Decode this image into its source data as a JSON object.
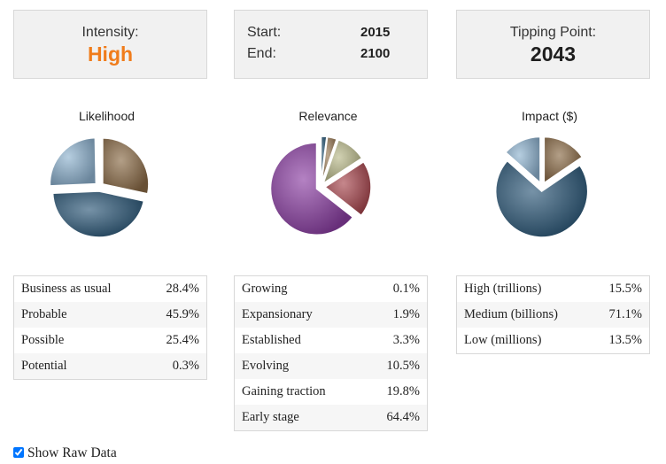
{
  "intensity": {
    "label": "Intensity:",
    "value": "High"
  },
  "dates": {
    "start_label": "Start:",
    "start_value": "2015",
    "end_label": "End:",
    "end_value": "2100"
  },
  "tipping": {
    "label": "Tipping Point:",
    "value": "2043"
  },
  "charts": {
    "likelihood": {
      "title": "Likelihood"
    },
    "relevance": {
      "title": "Relevance"
    },
    "impact": {
      "title": "Impact ($)"
    }
  },
  "chart_data": [
    {
      "type": "pie",
      "title": "Likelihood",
      "categories": [
        "Business as usual",
        "Probable",
        "Possible",
        "Potential"
      ],
      "values": [
        28.4,
        45.9,
        25.4,
        0.3
      ],
      "colors": [
        "#8a6b47",
        "#2c5878",
        "#8fb3d0",
        "#5f7e9a"
      ]
    },
    {
      "type": "pie",
      "title": "Relevance",
      "categories": [
        "Growing",
        "Expansionary",
        "Established",
        "Evolving",
        "Gaining traction",
        "Early stage"
      ],
      "values": [
        0.1,
        1.9,
        3.3,
        10.5,
        19.8,
        64.4
      ],
      "colors": [
        "#4a5d80",
        "#1f4e6e",
        "#9a7a56",
        "#b9b98a",
        "#a8464e",
        "#8b3fa3"
      ]
    },
    {
      "type": "pie",
      "title": "Impact ($)",
      "categories": [
        "High (trillions)",
        "Medium (billions)",
        "Low (millions)"
      ],
      "values": [
        15.5,
        71.1,
        13.5
      ],
      "colors": [
        "#8a6b47",
        "#2c5878",
        "#8fb3d0"
      ]
    }
  ],
  "tables": {
    "likelihood": [
      {
        "name": "Business as usual",
        "pct": "28.4%"
      },
      {
        "name": "Probable",
        "pct": "45.9%"
      },
      {
        "name": "Possible",
        "pct": "25.4%"
      },
      {
        "name": "Potential",
        "pct": "0.3%"
      }
    ],
    "relevance": [
      {
        "name": "Growing",
        "pct": "0.1%"
      },
      {
        "name": "Expansionary",
        "pct": "1.9%"
      },
      {
        "name": "Established",
        "pct": "3.3%"
      },
      {
        "name": "Evolving",
        "pct": "10.5%"
      },
      {
        "name": "Gaining traction",
        "pct": "19.8%"
      },
      {
        "name": "Early stage",
        "pct": "64.4%"
      }
    ],
    "impact": [
      {
        "name": "High (trillions)",
        "pct": "15.5%"
      },
      {
        "name": "Medium (billions)",
        "pct": "71.1%"
      },
      {
        "name": "Low (millions)",
        "pct": "13.5%"
      }
    ]
  },
  "raw_data": {
    "label": "Show Raw Data",
    "checked": true
  }
}
